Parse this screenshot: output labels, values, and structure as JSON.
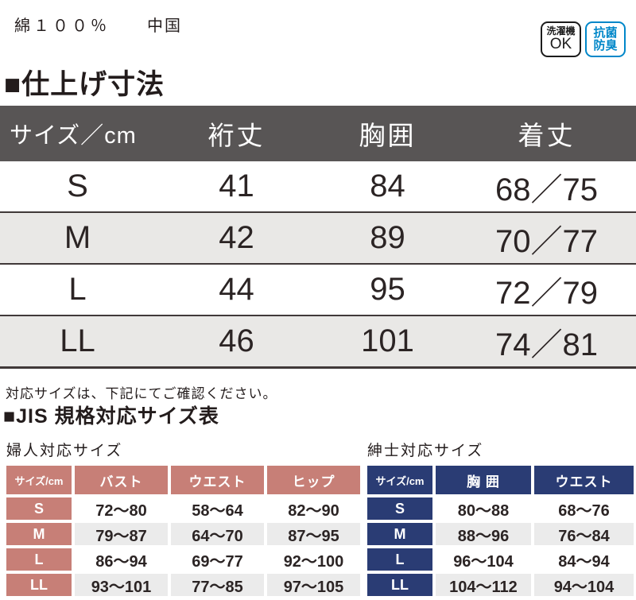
{
  "top": {
    "material": "綿１００％",
    "origin": "中国"
  },
  "badges": {
    "washing_machine": {
      "line1": "洗濯機",
      "line2": "OK"
    },
    "antibacterial": {
      "line1": "抗菌",
      "line2": "防臭"
    }
  },
  "finished": {
    "heading": "■仕上げ寸法",
    "columns": [
      "サイズ／cm",
      "裄丈",
      "胸囲",
      "着丈"
    ],
    "rows": [
      [
        "S",
        "41",
        "84",
        "68／75"
      ],
      [
        "M",
        "42",
        "89",
        "70／77"
      ],
      [
        "L",
        "44",
        "95",
        "72／79"
      ],
      [
        "LL",
        "46",
        "101",
        "74／81"
      ]
    ]
  },
  "note": "対応サイズは、下記にてご確認ください。",
  "jis": {
    "heading": "■JIS 規格対応サイズ表",
    "women": {
      "title": "婦人対応サイズ",
      "columns": [
        "サイズ/cm",
        "バスト",
        "ウエスト",
        "ヒップ"
      ],
      "rows": [
        [
          "S",
          "72～80",
          "58～64",
          "82～90"
        ],
        [
          "M",
          "79～87",
          "64～70",
          "87～95"
        ],
        [
          "L",
          "86～94",
          "69～77",
          "92～100"
        ],
        [
          "LL",
          "93～101",
          "77～85",
          "97～105"
        ]
      ]
    },
    "men": {
      "title": "紳士対応サイズ",
      "columns": [
        "サイズ/cm",
        "胸 囲",
        "ウエスト"
      ],
      "rows": [
        [
          "S",
          "80～88",
          "68～76"
        ],
        [
          "M",
          "88～96",
          "76～84"
        ],
        [
          "L",
          "96～104",
          "84～94"
        ],
        [
          "LL",
          "104～112",
          "94～104"
        ]
      ]
    }
  },
  "colors": {
    "main_header_gray": "#585555",
    "main_row_alt_gray": "#e9e8e6",
    "women_accent_pink": "#c77f77",
    "men_accent_navy": "#2a3c74",
    "badge_blue": "#0087c9",
    "sub_row_alt_gray": "#ebebeb"
  }
}
